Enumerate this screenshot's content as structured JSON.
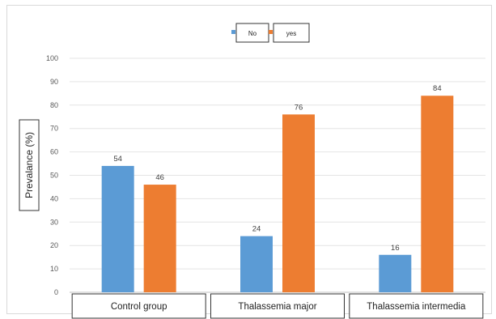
{
  "chart_data": {
    "type": "bar",
    "title": "",
    "xlabel": "",
    "ylabel": "Prevalance (%)",
    "ylim": [
      0,
      100
    ],
    "yticks": [
      0,
      10,
      20,
      30,
      40,
      50,
      60,
      70,
      80,
      90,
      100
    ],
    "grid": true,
    "legend_position": "top-center",
    "categories": [
      "Control group",
      "Thalassemia major",
      "Thalassemia intermedia"
    ],
    "series": [
      {
        "name": "No",
        "values": [
          54,
          24,
          16
        ],
        "color": "#5b9bd5"
      },
      {
        "name": "yes",
        "values": [
          46,
          76,
          84
        ],
        "color": "#ed7d31"
      }
    ]
  }
}
